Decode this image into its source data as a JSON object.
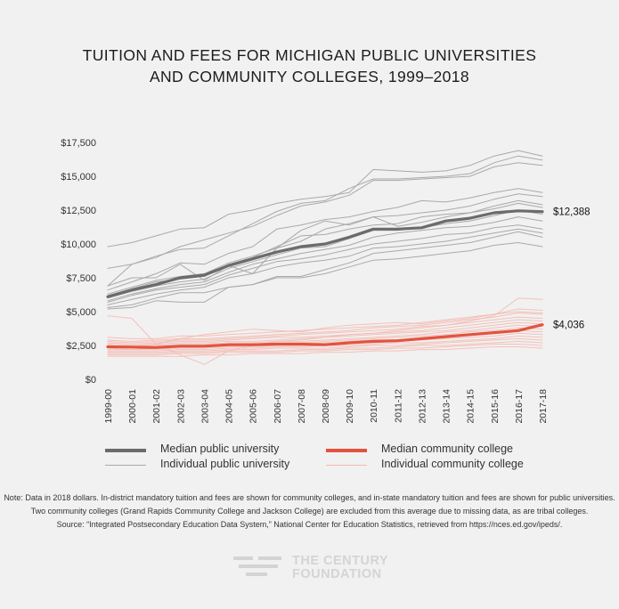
{
  "title_lines": [
    "TUITION AND FEES FOR MICHIGAN PUBLIC UNIVERSITIES",
    "AND COMMUNITY COLLEGES, 1999–2018"
  ],
  "chart_data": {
    "type": "line",
    "title": "TUITION AND FEES FOR MICHIGAN PUBLIC UNIVERSITIES AND COMMUNITY COLLEGES, 1999–2018",
    "xlabel": "",
    "ylabel": "",
    "ylim": [
      0,
      17500
    ],
    "grid": false,
    "yticks": [
      0,
      2500,
      5000,
      7500,
      10000,
      12500,
      15000,
      17500
    ],
    "ytick_labels": [
      "$0",
      "$2,500",
      "$5,000",
      "$7,500",
      "$10,000",
      "$12,500",
      "$15,000",
      "$17,500"
    ],
    "categories": [
      "1999-00",
      "2000-01",
      "2001-02",
      "2002-03",
      "2003-04",
      "2004-05",
      "2005-06",
      "2006-07",
      "2007-08",
      "2008-09",
      "2009-10",
      "2010-11",
      "2011-12",
      "2012-13",
      "2013-14",
      "2014-15",
      "2015-16",
      "2016-17",
      "2017-18"
    ],
    "series": [
      {
        "name": "Median public university",
        "style": "median-university",
        "end_label": "$12,388",
        "values": [
          6100,
          6600,
          7000,
          7500,
          7700,
          8400,
          8900,
          9400,
          9800,
          10000,
          10500,
          11100,
          11100,
          11200,
          11700,
          11900,
          12300,
          12450,
          12388
        ]
      },
      {
        "name": "Median community college",
        "style": "median-community",
        "end_label": "$4,036",
        "values": [
          2400,
          2380,
          2350,
          2450,
          2450,
          2550,
          2550,
          2600,
          2600,
          2550,
          2700,
          2800,
          2850,
          3000,
          3150,
          3300,
          3450,
          3600,
          4036
        ]
      },
      {
        "name": "Individual public university",
        "style": "individual-university",
        "values": [
          9800,
          10100,
          10600,
          11100,
          11200,
          12200,
          12500,
          13000,
          13300,
          13500,
          13800,
          15500,
          15400,
          15300,
          15400,
          15800,
          16500,
          16900,
          16500
        ]
      },
      {
        "name": "Individual public university",
        "style": "individual-university",
        "values": [
          8200,
          8500,
          9100,
          9600,
          9700,
          10600,
          11500,
          12400,
          13000,
          13200,
          14100,
          14800,
          14800,
          14900,
          15000,
          15200,
          16000,
          16500,
          16200
        ]
      },
      {
        "name": "Individual public university",
        "style": "individual-university",
        "values": [
          6900,
          8500,
          9000,
          9800,
          10300,
          10800,
          11300,
          12100,
          12800,
          13100,
          13600,
          14700,
          14700,
          14800,
          14900,
          15000,
          15700,
          16000,
          15800
        ]
      },
      {
        "name": "Individual public university",
        "style": "individual-university",
        "values": [
          6600,
          7200,
          7800,
          8600,
          8500,
          9300,
          9800,
          11100,
          11400,
          11800,
          12000,
          12400,
          12700,
          13200,
          13100,
          13400,
          13800,
          14100,
          13800
        ]
      },
      {
        "name": "Individual public university",
        "style": "individual-university",
        "values": [
          6300,
          6800,
          7300,
          7600,
          7800,
          8600,
          9100,
          9700,
          10200,
          11100,
          11500,
          12000,
          12100,
          12300,
          12500,
          12800,
          13300,
          13700,
          13500
        ]
      },
      {
        "name": "Individual public university",
        "style": "individual-university",
        "values": [
          6200,
          6700,
          7200,
          7400,
          7600,
          8500,
          9000,
          9800,
          10600,
          10700,
          11100,
          11400,
          11500,
          12000,
          12200,
          12300,
          12600,
          13000,
          12700
        ]
      },
      {
        "name": "Individual public university",
        "style": "individual-university",
        "values": [
          6000,
          6500,
          6900,
          7200,
          7400,
          8200,
          8700,
          9200,
          9700,
          9800,
          10400,
          11000,
          11000,
          11200,
          11500,
          11700,
          12100,
          12500,
          12200
        ]
      },
      {
        "name": "Individual public university",
        "style": "individual-university",
        "values": [
          5800,
          6300,
          6700,
          7000,
          7200,
          7900,
          8500,
          8900,
          9300,
          9600,
          9900,
          10500,
          10800,
          11000,
          11200,
          11300,
          11600,
          12000,
          11700
        ]
      },
      {
        "name": "Individual public university",
        "style": "individual-university",
        "values": [
          5700,
          6200,
          6600,
          6800,
          7000,
          7700,
          8200,
          8700,
          8900,
          9200,
          9600,
          10000,
          10200,
          10400,
          10700,
          10800,
          11200,
          11400,
          11100
        ]
      },
      {
        "name": "Individual public university",
        "style": "individual-university",
        "values": [
          5500,
          5900,
          6300,
          6600,
          6800,
          7500,
          7800,
          8300,
          8600,
          8800,
          9100,
          9700,
          9800,
          10000,
          10200,
          10500,
          10800,
          11100,
          10800
        ]
      },
      {
        "name": "Individual public university",
        "style": "individual-university",
        "values": [
          5300,
          5500,
          6000,
          6400,
          6400,
          6800,
          7000,
          7600,
          7600,
          8100,
          8600,
          9300,
          9500,
          9700,
          9900,
          10100,
          10500,
          10900,
          10500
        ]
      },
      {
        "name": "Individual public university",
        "style": "individual-university",
        "values": [
          5200,
          5300,
          5800,
          5700,
          5700,
          6800,
          7000,
          7500,
          7500,
          7800,
          8300,
          8800,
          8900,
          9100,
          9300,
          9500,
          9900,
          10100,
          9800
        ]
      },
      {
        "name": "Individual public university",
        "style": "individual-university",
        "values": [
          6900,
          7500,
          7500,
          8500,
          7300,
          8400,
          7800,
          9700,
          11000,
          11700,
          11400,
          12000,
          11300,
          11600,
          12000,
          12300,
          12800,
          13200,
          12900
        ]
      },
      {
        "name": "Individual community college",
        "style": "individual-community",
        "values": [
          4700,
          4500,
          2600,
          1800,
          1100,
          2100,
          2500,
          2800,
          2900,
          3100,
          3300,
          3400,
          3600,
          3800,
          4000,
          4300,
          4700,
          6000,
          5900
        ]
      },
      {
        "name": "Individual community college",
        "style": "individual-community",
        "values": [
          3100,
          3000,
          3000,
          3200,
          3200,
          3300,
          3400,
          3500,
          3600,
          3700,
          3800,
          3900,
          4000,
          4200,
          4400,
          4600,
          4800,
          5200,
          5100
        ]
      },
      {
        "name": "Individual community college",
        "style": "individual-community",
        "values": [
          2900,
          2800,
          2900,
          3000,
          3000,
          3100,
          3200,
          3300,
          3400,
          3500,
          3600,
          3800,
          3900,
          4000,
          4200,
          4400,
          4600,
          4900,
          4800
        ]
      },
      {
        "name": "Individual community college",
        "style": "individual-community",
        "values": [
          2800,
          2700,
          2800,
          2900,
          2900,
          3000,
          3100,
          3200,
          3300,
          3400,
          3500,
          3600,
          3700,
          3900,
          4000,
          4200,
          4400,
          4600,
          4500
        ]
      },
      {
        "name": "Individual community college",
        "style": "individual-community",
        "values": [
          2700,
          2600,
          2700,
          2800,
          2800,
          2900,
          3000,
          3100,
          3100,
          3200,
          3300,
          3400,
          3500,
          3600,
          3800,
          4000,
          4200,
          4400,
          4300
        ]
      },
      {
        "name": "Individual community college",
        "style": "individual-community",
        "values": [
          2600,
          2500,
          2600,
          2700,
          2700,
          2800,
          2800,
          2900,
          3000,
          3100,
          3200,
          3300,
          3400,
          3500,
          3600,
          3800,
          4000,
          4200,
          4100
        ]
      },
      {
        "name": "Individual community college",
        "style": "individual-community",
        "values": [
          2500,
          2400,
          2500,
          2600,
          2600,
          2700,
          2700,
          2800,
          2800,
          2900,
          3000,
          3100,
          3200,
          3300,
          3500,
          3600,
          3800,
          4000,
          3900
        ]
      },
      {
        "name": "Individual community college",
        "style": "individual-community",
        "values": [
          2400,
          2300,
          2400,
          2500,
          2500,
          2600,
          2600,
          2700,
          2700,
          2800,
          2900,
          3000,
          3100,
          3200,
          3300,
          3500,
          3600,
          3800,
          3700
        ]
      },
      {
        "name": "Individual community college",
        "style": "individual-community",
        "values": [
          2300,
          2200,
          2300,
          2400,
          2400,
          2500,
          2500,
          2600,
          2600,
          2700,
          2800,
          2900,
          2900,
          3000,
          3100,
          3300,
          3400,
          3600,
          3500
        ]
      },
      {
        "name": "Individual community college",
        "style": "individual-community",
        "values": [
          2200,
          2200,
          2200,
          2300,
          2300,
          2400,
          2400,
          2500,
          2500,
          2600,
          2700,
          2700,
          2800,
          2900,
          3000,
          3100,
          3200,
          3400,
          3300
        ]
      },
      {
        "name": "Individual community college",
        "style": "individual-community",
        "values": [
          2100,
          2100,
          2100,
          2200,
          2200,
          2300,
          2300,
          2400,
          2400,
          2500,
          2500,
          2600,
          2700,
          2700,
          2800,
          2900,
          3000,
          3200,
          3100
        ]
      },
      {
        "name": "Individual community college",
        "style": "individual-community",
        "values": [
          2000,
          2000,
          2000,
          2100,
          2100,
          2200,
          2200,
          2300,
          2300,
          2300,
          2400,
          2500,
          2500,
          2600,
          2700,
          2800,
          2900,
          3000,
          2900
        ]
      },
      {
        "name": "Individual community college",
        "style": "individual-community",
        "values": [
          1900,
          1900,
          1900,
          2000,
          2000,
          2100,
          2100,
          2100,
          2200,
          2200,
          2300,
          2300,
          2400,
          2500,
          2500,
          2600,
          2700,
          2800,
          2700
        ]
      },
      {
        "name": "Individual community college",
        "style": "individual-community",
        "values": [
          1800,
          1800,
          1800,
          1900,
          1900,
          2000,
          2000,
          2000,
          2100,
          2100,
          2200,
          2200,
          2300,
          2300,
          2400,
          2500,
          2600,
          2600,
          2500
        ]
      },
      {
        "name": "Individual community college",
        "style": "individual-community",
        "values": [
          1700,
          1700,
          1700,
          1700,
          1800,
          1800,
          1900,
          1900,
          1900,
          2000,
          2000,
          2100,
          2100,
          2200,
          2200,
          2300,
          2400,
          2400,
          2300
        ]
      },
      {
        "name": "Individual community college",
        "style": "individual-community",
        "values": [
          2300,
          2400,
          2600,
          3000,
          3300,
          3500,
          3700,
          3600,
          3500,
          3800,
          4000,
          4100,
          4200,
          4100,
          4300,
          4500,
          4800,
          5000,
          4900
        ]
      }
    ]
  },
  "legend": {
    "median_university": "Median public university",
    "individual_university": "Individual public university",
    "median_community": "Median community college",
    "individual_community": "Individual community college"
  },
  "colors": {
    "median_university": "#6b6b6b",
    "individual_university": "#a9a9a9",
    "median_community": "#e2533f",
    "individual_community": "#f4b8b0"
  },
  "note_lines": [
    "Note: Data in 2018 dollars. In-district mandatory tuition and fees are shown for community colleges, and in-state mandatory tuition and fees are shown for public universities.",
    "Two community colleges (Grand Rapids Community College and Jackson College) are excluded from this average due to missing data, as are tribal colleges.",
    "Source: “Integrated Postsecondary Education Data System,” National Center for Education Statistics, retrieved from https://nces.ed.gov/ipeds/."
  ],
  "logo": {
    "line1": "THE CENTURY",
    "line2": "FOUNDATION",
    "icon": "century-foundation-logo-icon"
  }
}
